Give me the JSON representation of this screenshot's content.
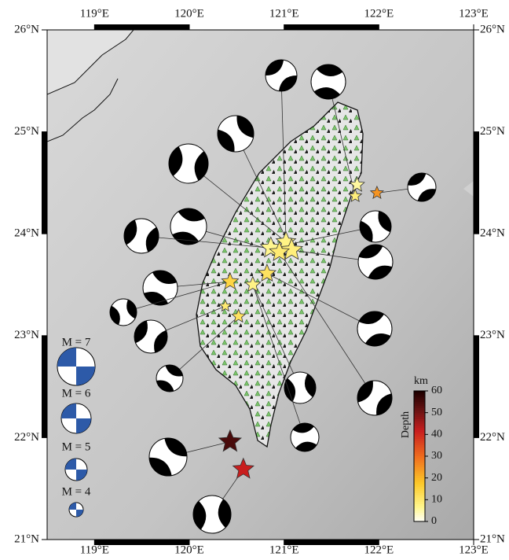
{
  "map": {
    "lon_ticks": [
      {
        "value": 119,
        "label": "119°E"
      },
      {
        "value": 120,
        "label": "120°E"
      },
      {
        "value": 121,
        "label": "121°E"
      },
      {
        "value": 122,
        "label": "122°E"
      },
      {
        "value": 123,
        "label": "123°E"
      }
    ],
    "lat_ticks": [
      {
        "value": 26,
        "label": "26°N"
      },
      {
        "value": 25,
        "label": "25°N"
      },
      {
        "value": 24,
        "label": "24°N"
      },
      {
        "value": 23,
        "label": "23°N"
      },
      {
        "value": 22,
        "label": "22°N"
      },
      {
        "value": 21,
        "label": "21°N"
      }
    ],
    "colorbar": {
      "title": "Depth",
      "unit": "km",
      "range": [
        0,
        60
      ],
      "ticks": [
        0,
        10,
        20,
        30,
        40,
        50,
        60
      ]
    },
    "legend": [
      {
        "label": "M = 7",
        "value": 7
      },
      {
        "label": "M = 6",
        "value": 6
      },
      {
        "label": "M = 5",
        "value": 5
      },
      {
        "label": "M = 4",
        "value": 4
      }
    ],
    "events": [
      {
        "lon": 121.77,
        "lat": 24.48,
        "depth": 6,
        "mag": 5.3
      },
      {
        "lon": 121.75,
        "lat": 24.37,
        "depth": 9,
        "mag": 5.0
      },
      {
        "lon": 121.98,
        "lat": 24.4,
        "depth": 25,
        "mag": 5.0
      },
      {
        "lon": 120.86,
        "lat": 23.86,
        "depth": 7,
        "mag": 6.2
      },
      {
        "lon": 121.02,
        "lat": 23.92,
        "depth": 8,
        "mag": 6.0
      },
      {
        "lon": 121.08,
        "lat": 23.84,
        "depth": 9,
        "mag": 6.3
      },
      {
        "lon": 120.95,
        "lat": 23.82,
        "depth": 10,
        "mag": 6.0
      },
      {
        "lon": 120.82,
        "lat": 23.61,
        "depth": 12,
        "mag": 5.7
      },
      {
        "lon": 120.67,
        "lat": 23.5,
        "depth": 8,
        "mag": 5.4
      },
      {
        "lon": 120.43,
        "lat": 23.53,
        "depth": 15,
        "mag": 5.6
      },
      {
        "lon": 120.38,
        "lat": 23.29,
        "depth": 10,
        "mag": 4.8
      },
      {
        "lon": 120.52,
        "lat": 23.19,
        "depth": 12,
        "mag": 5.1
      },
      {
        "lon": 120.43,
        "lat": 21.96,
        "depth": 55,
        "mag": 6.4
      },
      {
        "lon": 120.57,
        "lat": 21.69,
        "depth": 42,
        "mag": 6.2
      }
    ]
  }
}
